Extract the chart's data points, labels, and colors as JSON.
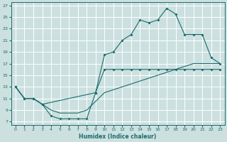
{
  "xlabel": "Humidex (Indice chaleur)",
  "bg_color": "#cce0e0",
  "grid_color": "#ffffff",
  "line_color": "#1a6b6b",
  "xlim": [
    -0.5,
    23.5
  ],
  "ylim": [
    6.5,
    27.5
  ],
  "xticks": [
    0,
    1,
    2,
    3,
    4,
    5,
    6,
    7,
    8,
    9,
    10,
    11,
    12,
    13,
    14,
    15,
    16,
    17,
    18,
    19,
    20,
    21,
    22,
    23
  ],
  "yticks": [
    7,
    9,
    11,
    13,
    15,
    17,
    19,
    21,
    23,
    25,
    27
  ],
  "zigzag_x": [
    0,
    1,
    2,
    3,
    4,
    5,
    6,
    7,
    8,
    9,
    10,
    11,
    12,
    13,
    14,
    15,
    16,
    17,
    18,
    19,
    20,
    21,
    22,
    23
  ],
  "zigzag_y": [
    13,
    11,
    11,
    10,
    8,
    7.5,
    7.5,
    7.5,
    7.5,
    12,
    16,
    16,
    16,
    16,
    16,
    16,
    16,
    16,
    16,
    16,
    16,
    16,
    16,
    16
  ],
  "upper_x": [
    0,
    1,
    2,
    3,
    9,
    10,
    11,
    12,
    13,
    14,
    15,
    16,
    17,
    18,
    19,
    20,
    21,
    22,
    23
  ],
  "upper_y": [
    13,
    11,
    11,
    10,
    12,
    18.5,
    19,
    21,
    22,
    24.5,
    24,
    24.5,
    26.5,
    25.5,
    22,
    22,
    22,
    18,
    17
  ],
  "diag_x": [
    0,
    1,
    2,
    3,
    4,
    5,
    6,
    7,
    8,
    9,
    10,
    11,
    12,
    13,
    14,
    15,
    16,
    17,
    18,
    19,
    20,
    21,
    22,
    23
  ],
  "diag_y": [
    13,
    11,
    11,
    10,
    9,
    8.5,
    8.5,
    8.5,
    9,
    10.5,
    12,
    12.5,
    13,
    13.5,
    14,
    14.5,
    15,
    15.5,
    16,
    16.5,
    17,
    17,
    17,
    17
  ]
}
